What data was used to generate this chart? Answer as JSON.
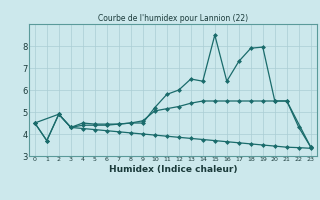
{
  "title": "Courbe de l'humidex pour Lannion (22)",
  "xlabel": "Humidex (Indice chaleur)",
  "bg_color": "#cce8ec",
  "line_color": "#1a6b6b",
  "grid_color": "#aacdd4",
  "xlim": [
    -0.5,
    23.5
  ],
  "ylim": [
    3,
    9
  ],
  "yticks": [
    3,
    4,
    5,
    6,
    7,
    8
  ],
  "xticks": [
    0,
    1,
    2,
    3,
    4,
    5,
    6,
    7,
    8,
    9,
    10,
    11,
    12,
    13,
    14,
    15,
    16,
    17,
    18,
    19,
    20,
    21,
    22,
    23
  ],
  "line1_x": [
    0,
    1,
    2,
    3,
    4,
    5,
    6,
    7,
    8,
    9,
    10,
    11,
    12,
    13,
    14,
    15,
    16,
    17,
    18,
    19,
    20,
    21,
    22,
    23
  ],
  "line1_y": [
    4.5,
    3.7,
    4.9,
    4.3,
    4.4,
    4.4,
    4.4,
    4.45,
    4.5,
    4.5,
    5.2,
    5.8,
    6.0,
    6.5,
    6.4,
    8.5,
    6.4,
    7.3,
    7.9,
    7.95,
    5.5,
    5.5,
    4.3,
    3.4
  ],
  "line2_x": [
    0,
    2,
    3,
    4,
    5,
    6,
    7,
    8,
    9,
    10,
    11,
    12,
    13,
    14,
    15,
    16,
    17,
    18,
    19,
    20,
    21,
    23
  ],
  "line2_y": [
    4.5,
    4.9,
    4.3,
    4.5,
    4.45,
    4.45,
    4.45,
    4.5,
    4.6,
    5.05,
    5.15,
    5.25,
    5.4,
    5.5,
    5.5,
    5.5,
    5.5,
    5.5,
    5.5,
    5.5,
    5.5,
    3.4
  ],
  "line3_x": [
    0,
    1,
    2,
    3,
    4,
    5,
    6,
    7,
    8,
    9,
    10,
    11,
    12,
    13,
    14,
    15,
    16,
    17,
    18,
    19,
    20,
    21,
    22,
    23
  ],
  "line3_y": [
    4.5,
    3.7,
    4.9,
    4.3,
    4.25,
    4.2,
    4.15,
    4.1,
    4.05,
    4.0,
    3.95,
    3.9,
    3.85,
    3.8,
    3.75,
    3.7,
    3.65,
    3.6,
    3.55,
    3.5,
    3.45,
    3.4,
    3.38,
    3.35
  ]
}
